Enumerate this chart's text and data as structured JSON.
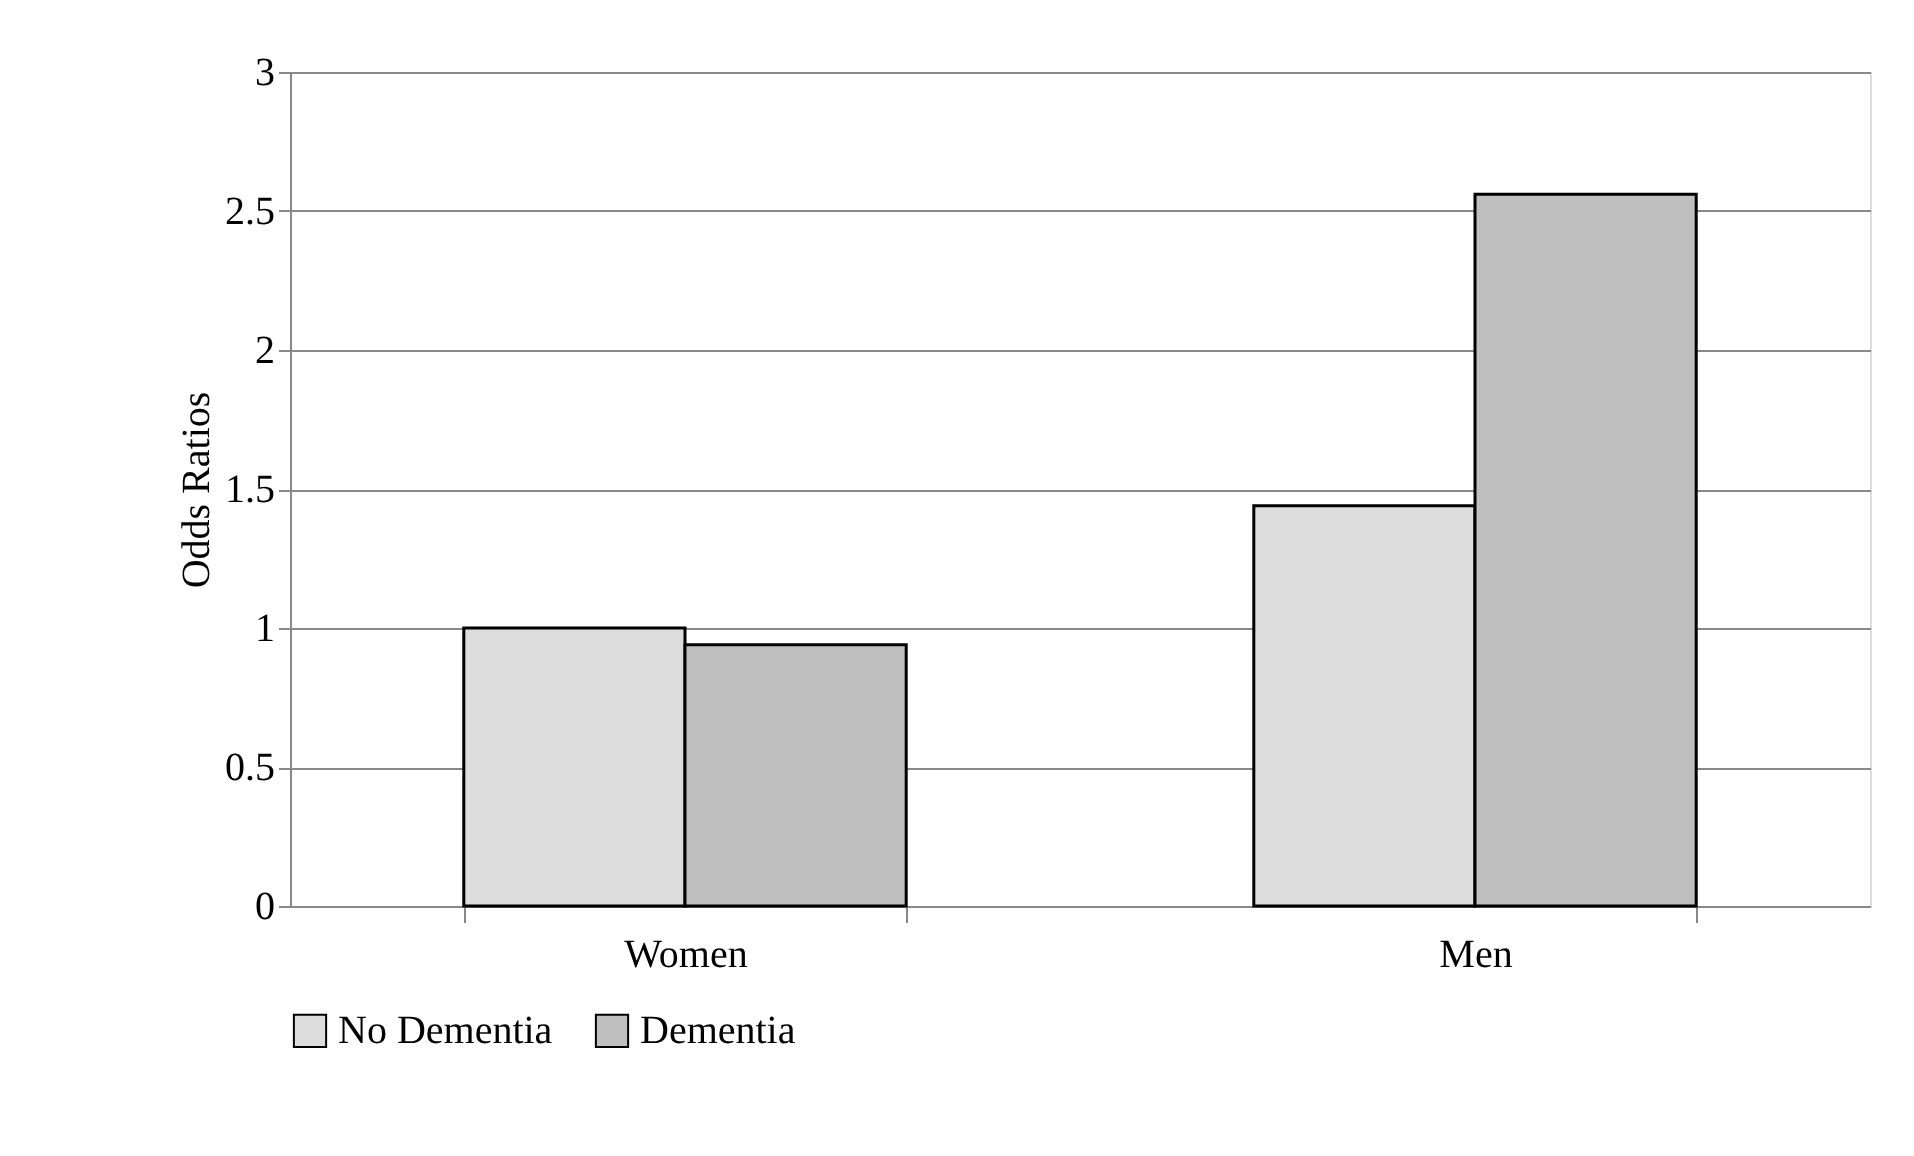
{
  "chart_data": {
    "type": "bar",
    "ylabel": "Odds Ratios",
    "categories": [
      "Women",
      "Men"
    ],
    "series": [
      {
        "name": "No Dementia",
        "color": "#dcdcdc",
        "values": [
          1.0,
          1.44
        ]
      },
      {
        "name": "Dementia",
        "color": "#bfbfbf",
        "values": [
          0.94,
          2.56
        ]
      }
    ],
    "ylim": [
      0,
      3
    ],
    "yticks": [
      0,
      0.5,
      1,
      1.5,
      2,
      2.5,
      3
    ],
    "grid": "y",
    "legend": "bottom"
  }
}
